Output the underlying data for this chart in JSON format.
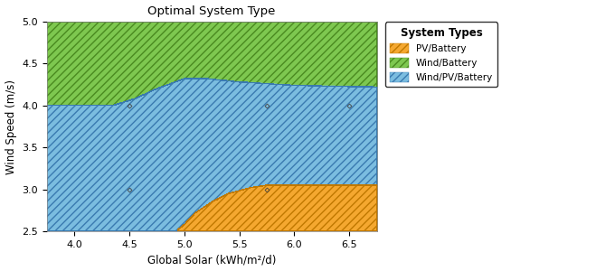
{
  "title": "Optimal System Type",
  "xlabel": "Global Solar (kWh/m²/d)",
  "ylabel": "Wind Speed (m/s)",
  "xlim": [
    3.75,
    6.75
  ],
  "ylim": [
    2.5,
    5.0
  ],
  "xticks": [
    4.0,
    4.5,
    5.0,
    5.5,
    6.0,
    6.5
  ],
  "yticks": [
    2.5,
    3.0,
    3.5,
    4.0,
    4.5,
    5.0
  ],
  "legend_title": "System Types",
  "colors": {
    "PV/Battery": "#F5A830",
    "Wind/Battery": "#7EC850",
    "Wind/PV/Battery": "#7BBDE0"
  },
  "data_points": [
    [
      4.5,
      4.0
    ],
    [
      4.5,
      3.0
    ],
    [
      5.75,
      4.0
    ],
    [
      5.75,
      3.0
    ],
    [
      6.5,
      4.0
    ]
  ],
  "gb_boundary": {
    "comment": "Green/Blue boundary: solar=[3.75,4.4,4.7,5.0,5.3,5.5,6.0,6.75], wind=[4.0,4.0,4.15,4.3,4.3,4.28,4.25,4.22]"
  },
  "orange_boundary": {
    "comment": "Orange top boundary: solar=[4.95,5.0,5.1,5.2,5.4,5.6,5.75,6.0,6.5,6.75], wind=[2.5,2.55,2.65,2.75,2.9,3.0,3.05,3.05,3.05,3.05]"
  }
}
